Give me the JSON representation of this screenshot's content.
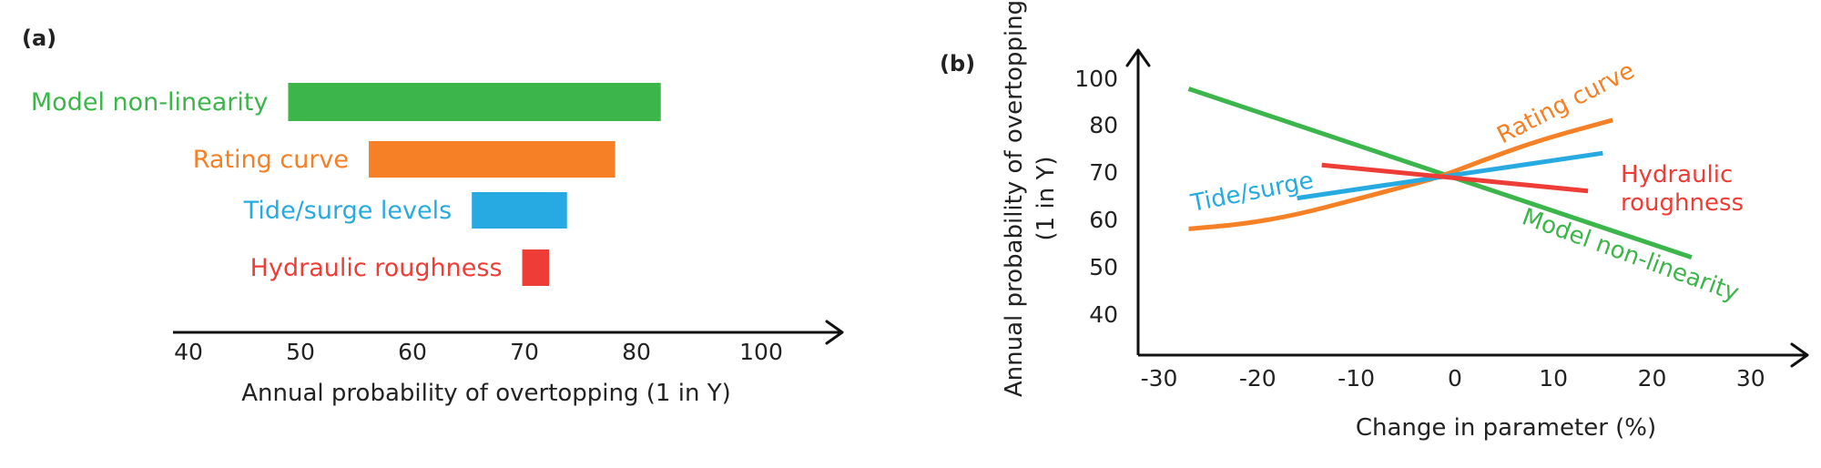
{
  "chart_data": [
    {
      "type": "bar",
      "orientation": "horizontal",
      "panel_label": "(a)",
      "xlabel": "Annual probability of overtopping (1 in Y)",
      "xlim": [
        40,
        100
      ],
      "xticks": [
        40,
        50,
        60,
        70,
        80,
        100
      ],
      "categories": [
        "Model non-linearity",
        "Rating curve",
        "Tide/surge levels",
        "Hydraulic roughness"
      ],
      "ranges": [
        [
          48.9,
          83.9
        ],
        [
          56.1,
          78.1
        ],
        [
          65.3,
          73.8
        ],
        [
          69.8,
          72.2
        ]
      ],
      "colors": [
        "#3cb54a",
        "#f58025",
        "#27aae1",
        "#ee3d37"
      ]
    },
    {
      "type": "line",
      "panel_label": "(b)",
      "xlabel": "Change in parameter (%)",
      "ylabel": "Annual probability of overtopping (1 in Y)",
      "xlim": [
        -30,
        30
      ],
      "ylim": [
        40,
        100
      ],
      "xticks": [
        -30,
        -20,
        -10,
        0,
        10,
        20,
        30
      ],
      "yticks": [
        40,
        50,
        60,
        70,
        80,
        100
      ],
      "series": [
        {
          "name": "Model non-linearity",
          "color": "#3cb54a",
          "x": [
            -27,
            24
          ],
          "y": [
            95.5,
            52
          ]
        },
        {
          "name": "Rating curve",
          "color": "#f58025",
          "x": [
            -27,
            -21.5,
            -16,
            -10.5,
            -5,
            -1.5,
            3.5,
            9,
            16
          ],
          "y": [
            58,
            59,
            61,
            64,
            67,
            69,
            73,
            77,
            82
          ]
        },
        {
          "name": "Tide/surge",
          "color": "#27aae1",
          "x": [
            -16,
            15
          ],
          "y": [
            64.5,
            74
          ]
        },
        {
          "name": "Hydraulic roughness",
          "color": "#ee3d37",
          "x": [
            -13.5,
            13.5
          ],
          "y": [
            71.5,
            66
          ]
        }
      ]
    }
  ]
}
